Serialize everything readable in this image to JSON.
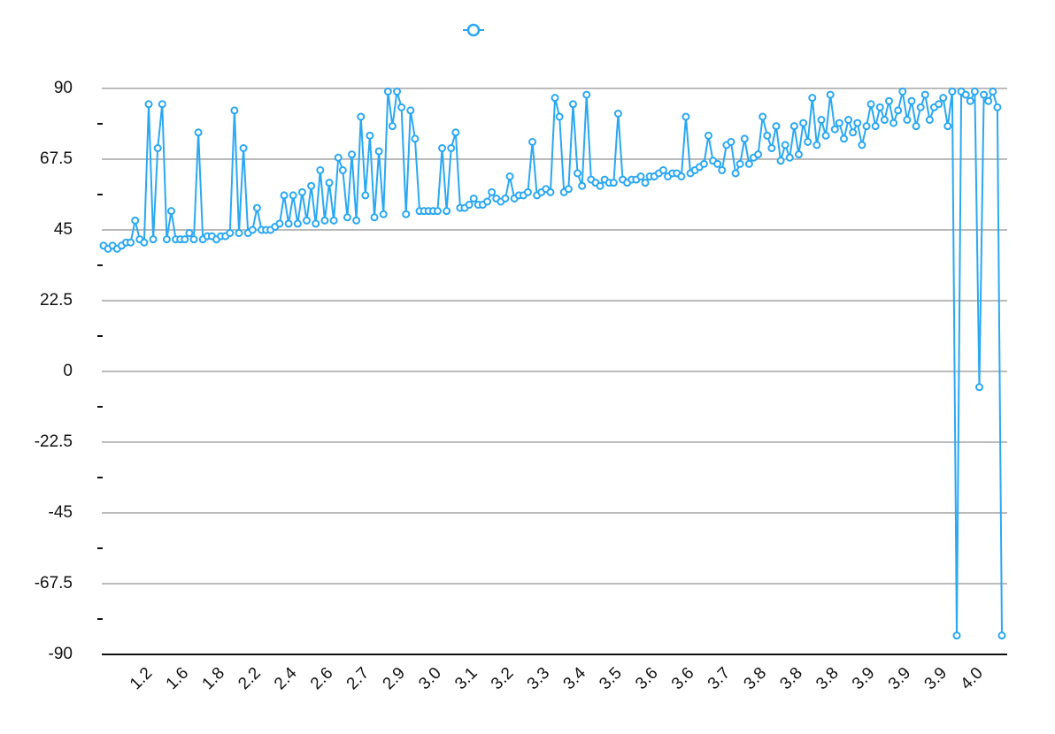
{
  "chart_data": {
    "type": "line",
    "categories": [
      null,
      null,
      null,
      null,
      null,
      null,
      null,
      null,
      null,
      "1.2",
      null,
      null,
      null,
      null,
      null,
      null,
      null,
      "1.6",
      null,
      null,
      null,
      null,
      null,
      null,
      null,
      "1.8",
      null,
      null,
      null,
      null,
      null,
      null,
      null,
      "2.2",
      null,
      null,
      null,
      null,
      null,
      null,
      null,
      "2.4",
      null,
      null,
      null,
      null,
      null,
      null,
      null,
      "2.6",
      null,
      null,
      null,
      null,
      null,
      null,
      null,
      "2.7",
      null,
      null,
      null,
      null,
      null,
      null,
      null,
      "2.9",
      null,
      null,
      null,
      null,
      null,
      null,
      null,
      "3.0",
      null,
      null,
      null,
      null,
      null,
      null,
      null,
      "3.1",
      null,
      null,
      null,
      null,
      null,
      null,
      null,
      "3.2",
      null,
      null,
      null,
      null,
      null,
      null,
      null,
      "3.3",
      null,
      null,
      null,
      null,
      null,
      null,
      null,
      "3.4",
      null,
      null,
      null,
      null,
      null,
      null,
      null,
      "3.5",
      null,
      null,
      null,
      null,
      null,
      null,
      null,
      "3.6",
      null,
      null,
      null,
      null,
      null,
      null,
      null,
      "3.6",
      null,
      null,
      null,
      null,
      null,
      null,
      null,
      "3.7",
      null,
      null,
      null,
      null,
      null,
      null,
      null,
      "3.8",
      null,
      null,
      null,
      null,
      null,
      null,
      null,
      "3.8",
      null,
      null,
      null,
      null,
      null,
      null,
      null,
      "3.8",
      null,
      null,
      null,
      null,
      null,
      null,
      null,
      "3.9",
      null,
      null,
      null,
      null,
      null,
      null,
      null,
      "3.9",
      null,
      null,
      null,
      null,
      null,
      null,
      null,
      "3.9",
      null,
      null,
      null,
      null,
      null,
      null,
      null,
      "4.0",
      null,
      null,
      null,
      null,
      null,
      null
    ],
    "series": [
      {
        "color": "#2aa8f2",
        "values": [
          40,
          39,
          40,
          39,
          40,
          41,
          41,
          48,
          42,
          41,
          85,
          42,
          71,
          85,
          42,
          51,
          42,
          42,
          42,
          44,
          42,
          76,
          42,
          43,
          43,
          42,
          43,
          43,
          44,
          83,
          44,
          71,
          44,
          45,
          52,
          45,
          45,
          45,
          46,
          47,
          56,
          47,
          56,
          47,
          57,
          48,
          59,
          47,
          64,
          48,
          60,
          48,
          68,
          64,
          49,
          69,
          48,
          81,
          56,
          75,
          49,
          70,
          50,
          89,
          78,
          89,
          84,
          50,
          83,
          74,
          51,
          51,
          51,
          51,
          51,
          71,
          51,
          71,
          76,
          52,
          52,
          53,
          55,
          53,
          53,
          54,
          57,
          55,
          54,
          55,
          62,
          55,
          56,
          56,
          57,
          73,
          56,
          57,
          58,
          57,
          87,
          81,
          57,
          58,
          85,
          63,
          59,
          88,
          61,
          60,
          59,
          61,
          60,
          60,
          82,
          61,
          60,
          61,
          61,
          62,
          60,
          62,
          62,
          63,
          64,
          62,
          63,
          63,
          62,
          81,
          63,
          64,
          65,
          66,
          75,
          67,
          66,
          64,
          72,
          73,
          63,
          66,
          74,
          66,
          68,
          69,
          81,
          75,
          71,
          78,
          67,
          72,
          68,
          78,
          69,
          79,
          73,
          87,
          72,
          80,
          75,
          88,
          77,
          79,
          74,
          80,
          76,
          79,
          72,
          78,
          85,
          78,
          84,
          80,
          86,
          79,
          83,
          89,
          80,
          86,
          78,
          84,
          88,
          80,
          84,
          85,
          87,
          78,
          89,
          -84,
          89,
          88,
          86,
          89,
          -5,
          88,
          86,
          89,
          84,
          -84
        ]
      }
    ],
    "ylim": [
      -90,
      90
    ],
    "yticks": [
      90,
      67.5,
      45,
      22.5,
      0,
      -22.5,
      -45,
      -67.5,
      -90
    ],
    "minor_yticks": [
      78.75,
      56.25,
      33.75,
      11.25,
      -11.25,
      -33.75,
      -56.25,
      -78.75
    ],
    "grid": true,
    "legend": true
  }
}
